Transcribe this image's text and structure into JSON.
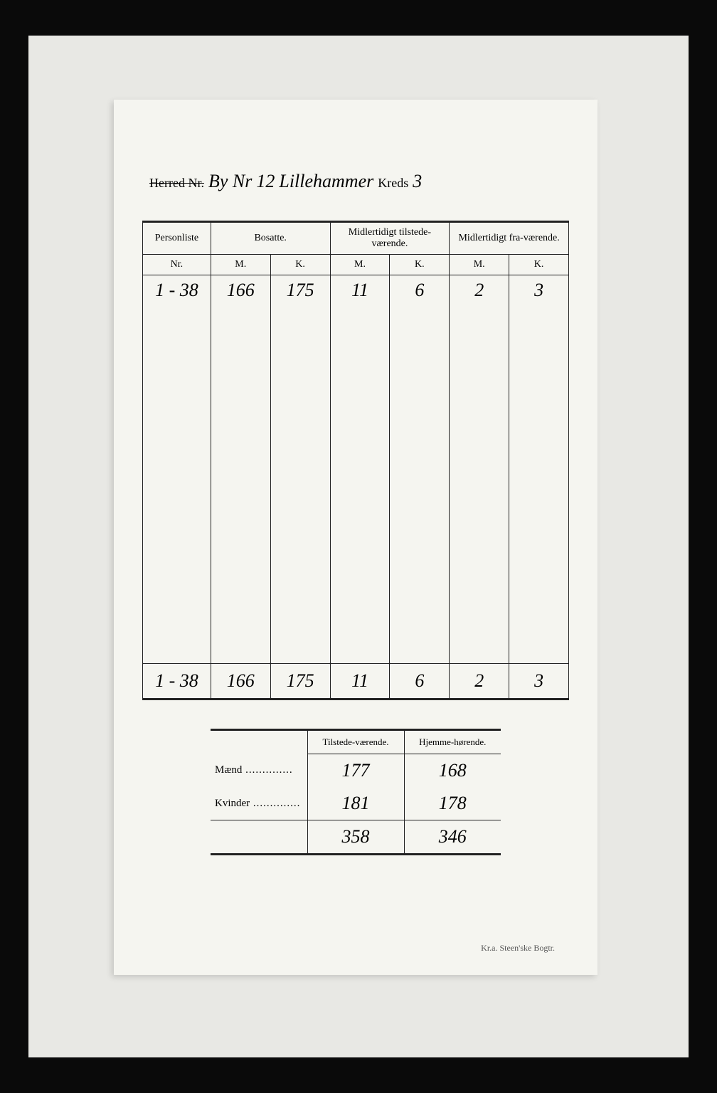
{
  "header": {
    "struck_label": "Herred Nr.",
    "by_label": "By Nr",
    "by_nr": "12",
    "place": "Lillehammer",
    "kreds_label": "Kreds",
    "kreds_nr": "3"
  },
  "main_table": {
    "headers": {
      "personliste": "Personliste",
      "bosatte": "Bosatte.",
      "tilstede": "Midlertidigt tilstede-værende.",
      "fravaer": "Midlertidigt fra-værende.",
      "nr": "Nr.",
      "m": "M.",
      "k": "K."
    },
    "row": {
      "nr": "1 - 38",
      "bos_m": "166",
      "bos_k": "175",
      "til_m": "11",
      "til_k": "6",
      "fra_m": "2",
      "fra_k": "3"
    },
    "totals": {
      "nr": "1 - 38",
      "bos_m": "166",
      "bos_k": "175",
      "til_m": "11",
      "til_k": "6",
      "fra_m": "2",
      "fra_k": "3"
    }
  },
  "summary": {
    "col_tilstede": "Tilstede-værende.",
    "col_hjemme": "Hjemme-hørende.",
    "maend_label": "Mænd",
    "kvinder_label": "Kvinder",
    "maend_til": "177",
    "maend_hj": "168",
    "kvinder_til": "181",
    "kvinder_hj": "178",
    "sum_til": "358",
    "sum_hj": "346"
  },
  "imprint": "Kr.a.  Steen'ske Bogtr."
}
